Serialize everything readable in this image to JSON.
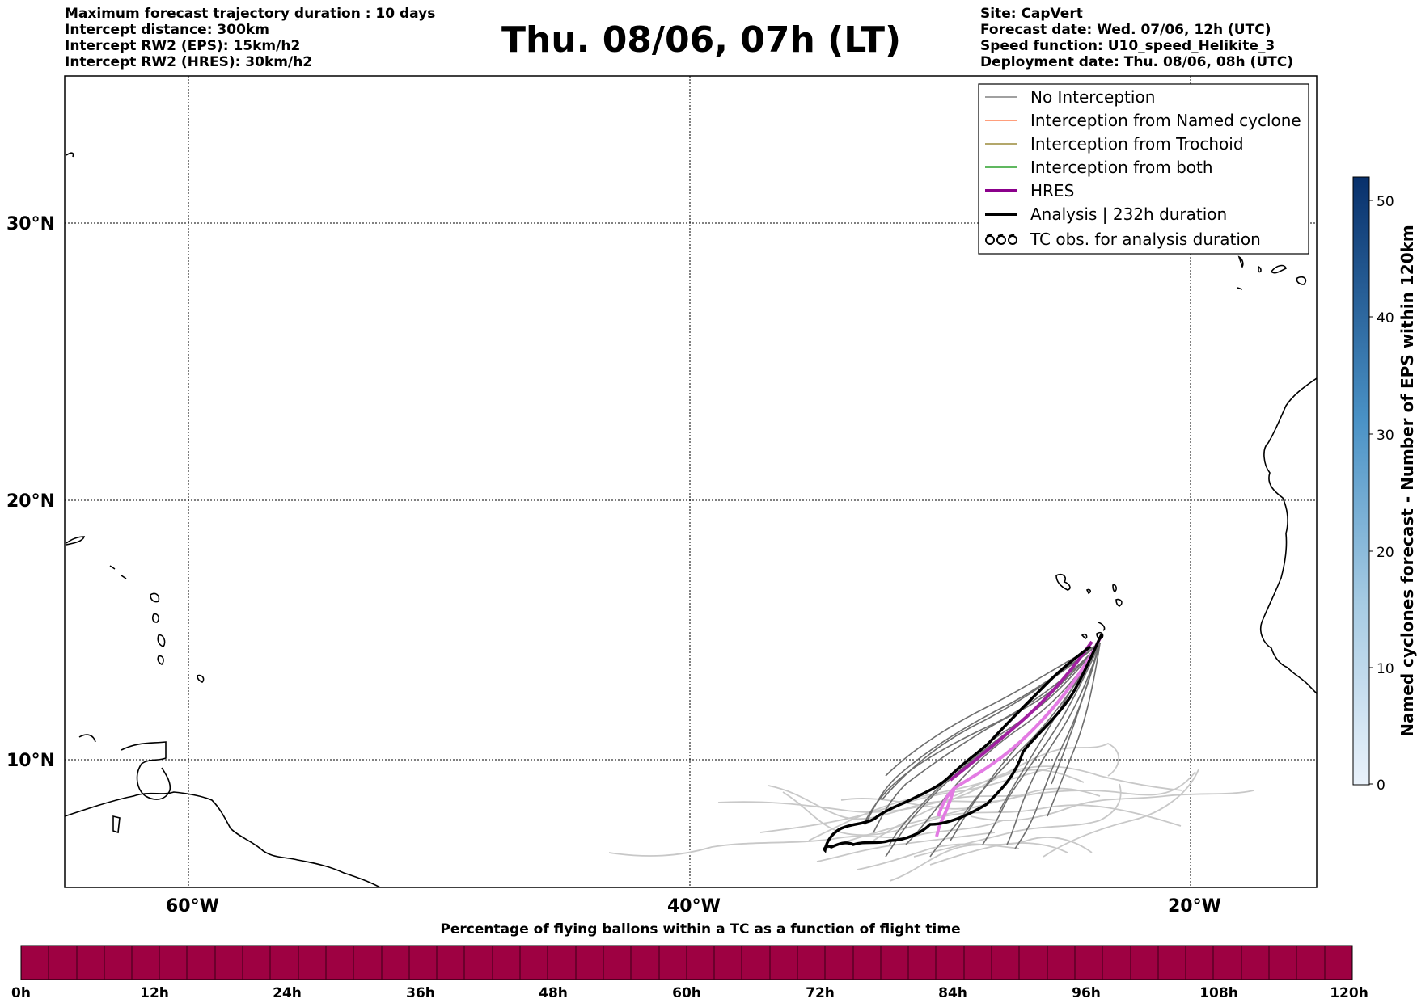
{
  "header": {
    "left_lines": [
      "Maximum forecast trajectory duration : 10 days",
      "Intercept distance: 300km",
      "Intercept RW2 (EPS):  15km/h2",
      "Intercept RW2 (HRES): 30km/h2"
    ],
    "title": "Thu. 08/06, 07h (LT)",
    "right_lines": [
      "Site: CapVert",
      "Forecast date: Wed. 07/06, 12h (UTC)",
      "Speed function: U10_speed_Helikite_3",
      "Deployment date: Thu. 08/06, 08h (UTC)"
    ]
  },
  "map": {
    "lat_labels": [
      "30°N",
      "20°N",
      "10°N"
    ],
    "lon_labels": [
      "60°W",
      "40°W",
      "20°W"
    ],
    "gridlines": true
  },
  "legend": {
    "items": [
      {
        "label": "No Interception",
        "color": "#808080",
        "style": "thin-line"
      },
      {
        "label": "Interception from Named cyclone",
        "color": "#ff7f50",
        "style": "thin-line"
      },
      {
        "label": "Interception from Trochoid",
        "color": "#9a8a3a",
        "style": "thin-line"
      },
      {
        "label": "Interception from both",
        "color": "#2ca02c",
        "style": "thin-line"
      },
      {
        "label": "HRES",
        "color": "#8b008b",
        "style": "thick-line"
      },
      {
        "label": "Analysis | 232h duration",
        "color": "#000000",
        "style": "thick-line"
      },
      {
        "label": "TC obs. for analysis duration",
        "color": "#000000",
        "style": "tc-symbol"
      }
    ]
  },
  "colorbar_right": {
    "title": "Named cyclones forecast - Number of EPS within 120km",
    "ticks": [
      "0",
      "10",
      "20",
      "30",
      "40",
      "50"
    ],
    "color_low": "#eaf2fb",
    "color_high": "#08306b"
  },
  "colorbar_bottom": {
    "title": "Percentage of flying ballons within a TC as a function of flight time",
    "ticks": [
      "0h",
      "12h",
      "24h",
      "36h",
      "48h",
      "60h",
      "72h",
      "84h",
      "96h",
      "108h",
      "120h"
    ],
    "fill_color": "#9e0142"
  },
  "colors": {
    "eps_no_interception": "#6e6e6e",
    "eps_light": "#c8c8c8",
    "hres": "#a020a0",
    "hres_light": "#e37be3",
    "analysis": "#000000"
  }
}
